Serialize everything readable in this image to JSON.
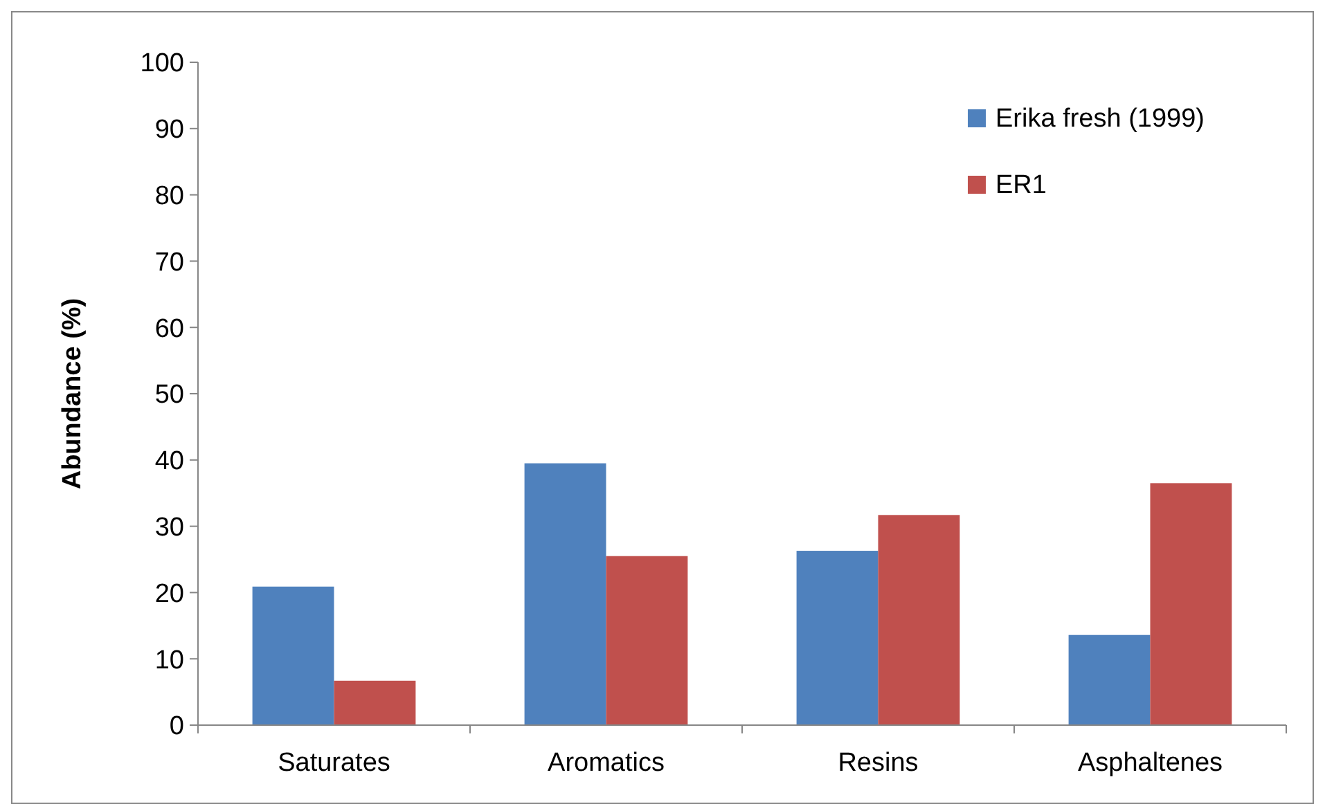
{
  "chart_data": {
    "type": "bar",
    "ylabel": "Abundance (%)",
    "categories": [
      "Saturates",
      "Aromatics",
      "Resins",
      "Asphaltenes"
    ],
    "series": [
      {
        "name": "Erika fresh (1999)",
        "color": "#4f81bd",
        "values": [
          20.9,
          39.5,
          26.3,
          13.6
        ]
      },
      {
        "name": "ER1",
        "color": "#c0504d",
        "values": [
          6.7,
          25.5,
          31.7,
          36.5
        ]
      }
    ],
    "ylim": [
      0,
      100
    ],
    "yticks": [
      0,
      10,
      20,
      30,
      40,
      50,
      60,
      70,
      80,
      90,
      100
    ],
    "legend": "top right"
  }
}
